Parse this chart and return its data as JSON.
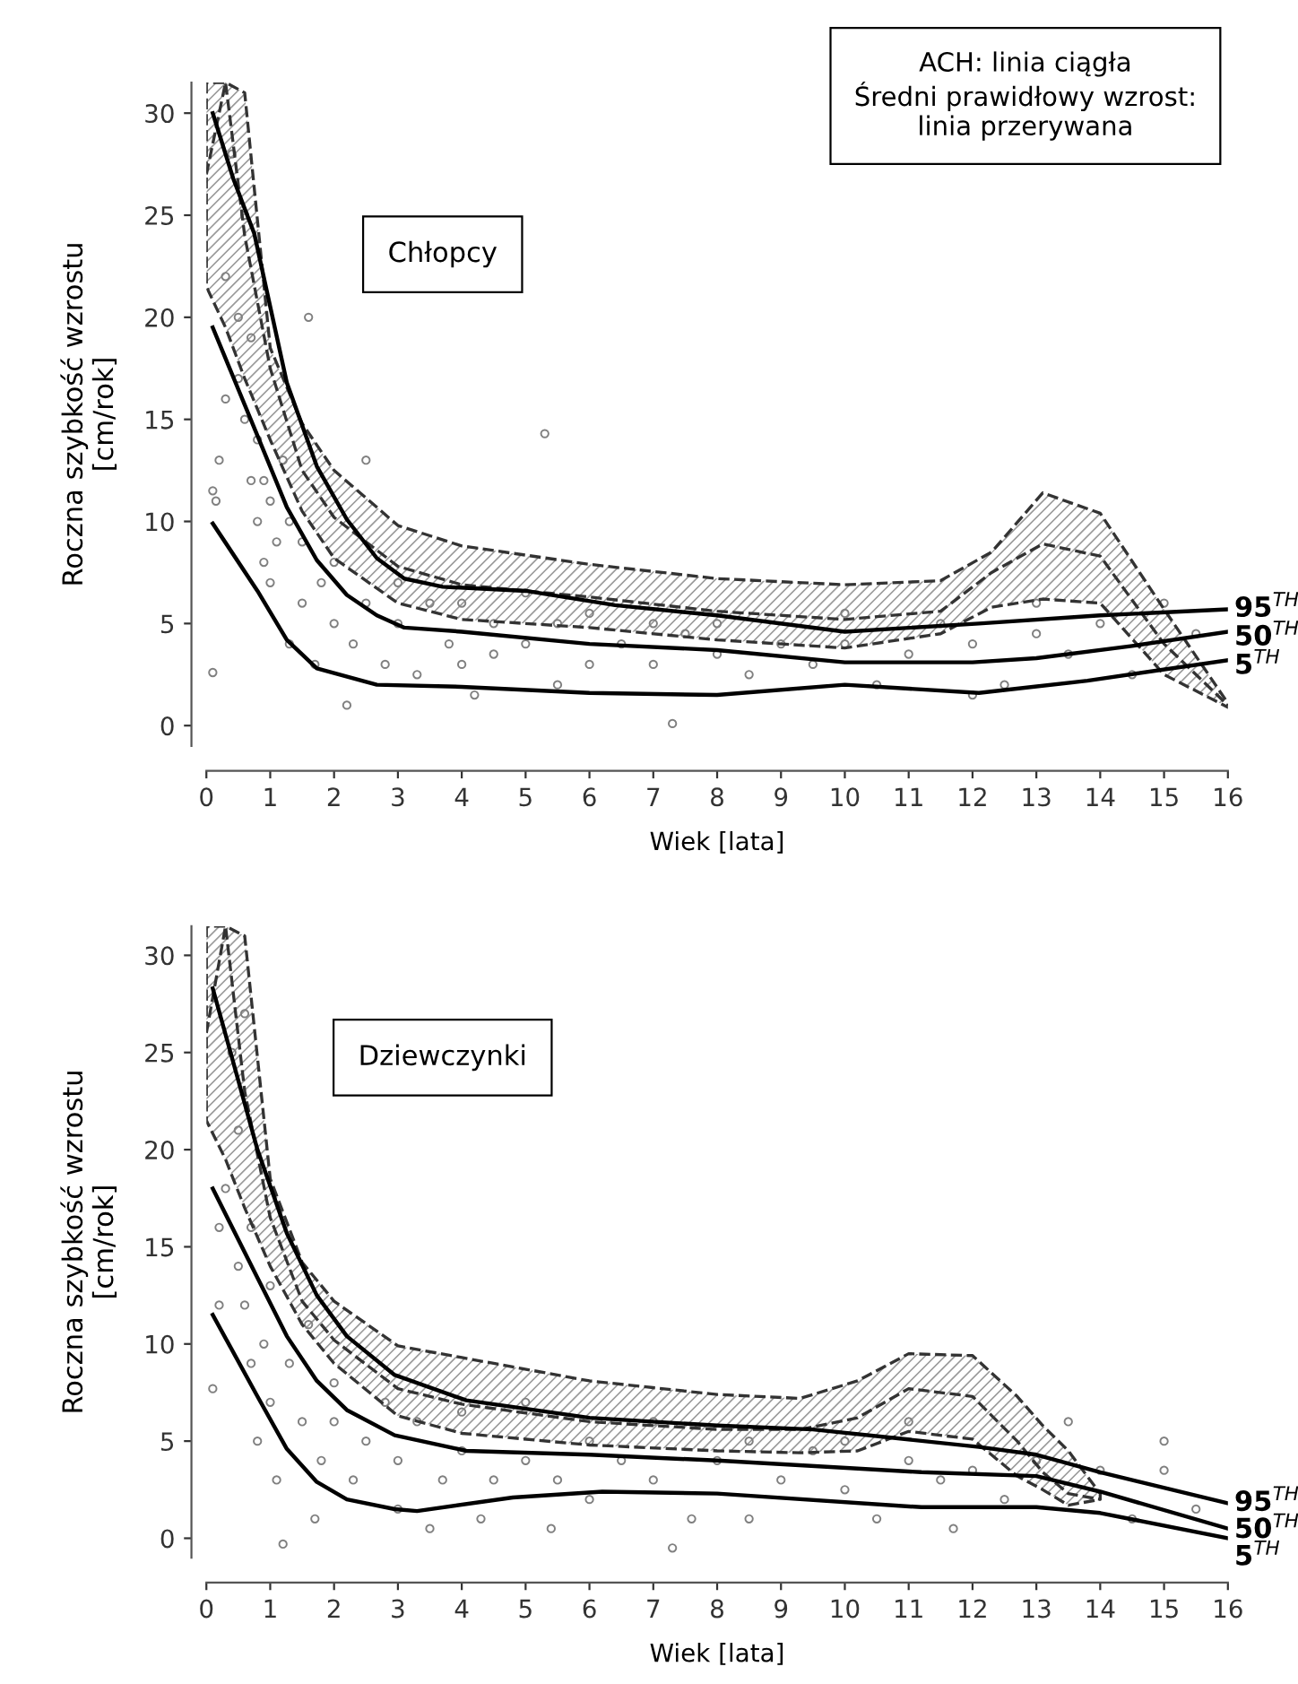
{
  "chart_data": [
    {
      "type": "line",
      "xlabel": "Wiek [lata]",
      "ylabel": "Roczna szybkość wzrostu\n[cm/rok]",
      "xlim": [
        0,
        16
      ],
      "ylim": [
        -1,
        31.5
      ],
      "xticks": [
        0,
        1,
        2,
        3,
        4,
        5,
        6,
        7,
        8,
        9,
        10,
        11,
        12,
        13,
        14,
        15,
        16
      ],
      "yticks": [
        0,
        5,
        10,
        15,
        20,
        25,
        30
      ],
      "annotations": [
        "ACH: linia ciągła\nŚredni prawidłowy wzrost:\nlinia przerywana",
        "Chłopcy"
      ],
      "series": [
        {
          "type": "scatter",
          "marker": "circle",
          "color": "#808080",
          "x": [
            0.1,
            0.1,
            0.15,
            0.2,
            0.3,
            0.3,
            0.4,
            0.5,
            0.5,
            0.6,
            0.6,
            0.7,
            0.7,
            0.8,
            0.8,
            0.9,
            0.9,
            1,
            1,
            1.1,
            1.2,
            1.3,
            1.3,
            1.5,
            1.5,
            1.6,
            1.7,
            1.8,
            2,
            2,
            2.2,
            2.3,
            2.5,
            2.5,
            2.8,
            3,
            3,
            3.3,
            3.5,
            3.8,
            4,
            4,
            4.2,
            4.5,
            4.5,
            5,
            5,
            5.3,
            5.5,
            5.5,
            6,
            6,
            6.5,
            7,
            7,
            7.3,
            7.5,
            8,
            8,
            8.5,
            9,
            9.5,
            10,
            10,
            10.5,
            11,
            11.5,
            12,
            12,
            12.5,
            13,
            13,
            13.5,
            14,
            14.5,
            15,
            15.5
          ],
          "values": [
            2.6,
            11.5,
            11,
            13,
            16,
            22,
            28,
            17,
            20,
            15,
            25,
            12,
            19,
            10,
            14,
            8,
            12,
            7,
            11,
            9,
            13,
            4,
            10,
            6,
            9,
            20,
            3,
            7,
            5,
            8,
            1,
            4,
            6,
            13,
            3,
            5,
            7,
            2.5,
            6,
            4,
            3,
            6,
            1.5,
            3.5,
            5,
            4,
            6.5,
            14.3,
            2,
            5,
            3,
            5.5,
            4,
            3,
            5,
            0.1,
            4.5,
            3.5,
            5,
            2.5,
            4,
            3,
            4,
            5.5,
            2,
            3.5,
            5,
            1.5,
            4,
            2,
            4.5,
            6,
            3.5,
            5,
            2.5,
            6,
            4.5
          ]
        },
        {
          "type": "line",
          "line_style": "dashed",
          "color": "#333333",
          "x": [
            0,
            0.3,
            0.6,
            1,
            1.5,
            2,
            3,
            4,
            6,
            8,
            10,
            11.5,
            12.3,
            13.1,
            14,
            15,
            16
          ],
          "values": [
            27,
            31.5,
            24,
            17.5,
            12.5,
            10.2,
            7.8,
            6.9,
            6.3,
            5.6,
            5.2,
            5.6,
            7.5,
            8.9,
            8.3,
            4.0,
            1.0
          ],
          "lower": [
            21.5,
            19.5,
            17,
            14,
            10.5,
            8.2,
            6,
            5.2,
            4.8,
            4.2,
            3.8,
            4.5,
            5.8,
            6.2,
            6.0,
            2.5,
            0.9
          ],
          "upper": [
            31.5,
            31.5,
            31,
            18.5,
            14.8,
            12.5,
            9.8,
            8.8,
            7.9,
            7.2,
            6.9,
            7.1,
            8.5,
            11.4,
            10.4,
            5.7,
            1.1
          ]
        },
        {
          "name": "95$^{TH}$",
          "color": "#000000",
          "x": [
            0.1,
            0.42,
            0.75,
            1.26,
            1.73,
            2.2,
            2.67,
            3.1,
            3.7,
            5,
            6.4,
            8,
            10,
            12.1,
            14,
            16
          ],
          "values": [
            30,
            26.8,
            24.1,
            16.8,
            12.7,
            10.1,
            8.2,
            7.2,
            6.8,
            6.6,
            5.9,
            5.4,
            4.6,
            5.0,
            5.4,
            5.7
          ]
        },
        {
          "name": "50$^{TH}$",
          "color": "#000000",
          "x": [
            0.1,
            0.8,
            1.26,
            1.73,
            2.2,
            2.67,
            3.1,
            4,
            6,
            8,
            10,
            12,
            13,
            14.5,
            16
          ],
          "values": [
            19.5,
            14.2,
            10.7,
            8.1,
            6.4,
            5.4,
            4.8,
            4.6,
            4.0,
            3.7,
            3.1,
            3.1,
            3.3,
            3.9,
            4.6
          ]
        },
        {
          "name": "5$^{TH}$",
          "color": "#000000",
          "x": [
            0.1,
            0.8,
            1.26,
            1.73,
            2.67,
            4,
            6,
            8,
            10,
            12.1,
            13.8,
            16
          ],
          "values": [
            9.9,
            6.6,
            4.2,
            2.8,
            2.0,
            1.9,
            1.6,
            1.5,
            2.0,
            1.6,
            2.2,
            3.2
          ]
        }
      ]
    },
    {
      "type": "line",
      "xlabel": "Wiek [lata]",
      "ylabel": "Roczna szybkość wzrostu\n[cm/rok]",
      "xlim": [
        0,
        16
      ],
      "ylim": [
        -1,
        31.5
      ],
      "xticks": [
        0,
        1,
        2,
        3,
        4,
        5,
        6,
        7,
        8,
        9,
        10,
        11,
        12,
        13,
        14,
        15,
        16
      ],
      "yticks": [
        0,
        5,
        10,
        15,
        20,
        25,
        30
      ],
      "annotations": [
        "Dziewczynki"
      ],
      "series": [
        {
          "type": "scatter",
          "marker": "circle",
          "color": "#808080",
          "x": [
            0.1,
            0.2,
            0.2,
            0.3,
            0.4,
            0.5,
            0.5,
            0.6,
            0.6,
            0.7,
            0.7,
            0.8,
            0.9,
            1,
            1,
            1.1,
            1.2,
            1.3,
            1.5,
            1.6,
            1.7,
            1.8,
            2,
            2,
            2.3,
            2.5,
            2.8,
            3,
            3,
            3.3,
            3.5,
            3.7,
            4,
            4,
            4.3,
            4.5,
            5,
            5,
            5.4,
            5.5,
            6,
            6,
            6.5,
            7,
            7,
            7.3,
            7.6,
            8,
            8.5,
            8.5,
            9,
            9.5,
            10,
            10,
            10.5,
            11,
            11,
            11.5,
            11.7,
            12,
            12.5,
            13,
            13.5,
            14,
            14.5,
            15,
            15,
            15.5
          ],
          "values": [
            7.7,
            12,
            16,
            18,
            25,
            14,
            21,
            12,
            27,
            9,
            16,
            5,
            10,
            7,
            13,
            3,
            -0.3,
            9,
            6,
            11,
            1,
            4,
            6,
            8,
            3,
            5,
            7,
            1.5,
            4,
            6,
            0.5,
            3,
            4.5,
            6.5,
            1,
            3,
            4,
            7,
            0.5,
            3,
            5,
            2,
            4,
            3,
            6,
            -0.5,
            1,
            4,
            1,
            5,
            3,
            4.5,
            2.5,
            5,
            1,
            4,
            6,
            3,
            0.5,
            3.5,
            2,
            4,
            6,
            3.5,
            1,
            5,
            3.5,
            1.5
          ]
        },
        {
          "type": "line",
          "line_style": "dashed",
          "color": "#333333",
          "x": [
            0,
            0.3,
            0.6,
            1,
            1.5,
            2,
            3,
            4,
            6,
            8,
            9.3,
            10.2,
            11,
            12,
            12.7,
            13.1,
            13.5,
            14
          ],
          "values": [
            26,
            31.5,
            23,
            16.5,
            12.2,
            10.2,
            7.7,
            6.9,
            6.0,
            5.6,
            5.6,
            6.2,
            7.7,
            7.3,
            5.0,
            3.4,
            2.3,
            2.0
          ],
          "lower": [
            21.5,
            19.5,
            17,
            14,
            11,
            9,
            6.3,
            5.4,
            4.8,
            4.5,
            4.4,
            4.5,
            5.5,
            5.1,
            3.2,
            2.5,
            1.7,
            2.0
          ],
          "upper": [
            31.5,
            31.5,
            31,
            18.5,
            14.2,
            12.2,
            9.9,
            9.3,
            8.1,
            7.4,
            7.2,
            8.1,
            9.5,
            9.4,
            7.3,
            5.8,
            4.5,
            2.3
          ]
        },
        {
          "name": "95$^{TH}$",
          "color": "#000000",
          "x": [
            0.1,
            0.8,
            1.26,
            1.73,
            2.2,
            2.95,
            4.07,
            6,
            8,
            9.5,
            12.1,
            13,
            14,
            16
          ],
          "values": [
            28.3,
            20.0,
            15.7,
            12.5,
            10.4,
            8.4,
            7.1,
            6.2,
            5.8,
            5.6,
            4.7,
            4.3,
            3.4,
            1.8
          ]
        },
        {
          "name": "50$^{TH}$",
          "color": "#000000",
          "x": [
            0.1,
            0.8,
            1.26,
            1.73,
            2.2,
            2.95,
            4.07,
            6,
            8,
            11.2,
            13,
            14,
            16
          ],
          "values": [
            18.0,
            13.4,
            10.4,
            8.1,
            6.6,
            5.3,
            4.5,
            4.3,
            4.0,
            3.4,
            3.2,
            2.4,
            0.5
          ]
        },
        {
          "name": "5$^{TH}$",
          "color": "#000000",
          "x": [
            0.1,
            0.8,
            1.26,
            1.73,
            2.2,
            2.95,
            3.3,
            4.8,
            6.2,
            8,
            11.2,
            13,
            14,
            16
          ],
          "values": [
            11.5,
            7.3,
            4.6,
            2.9,
            2.0,
            1.5,
            1.4,
            2.1,
            2.4,
            2.3,
            1.6,
            1.6,
            1.3,
            0
          ]
        }
      ]
    }
  ]
}
